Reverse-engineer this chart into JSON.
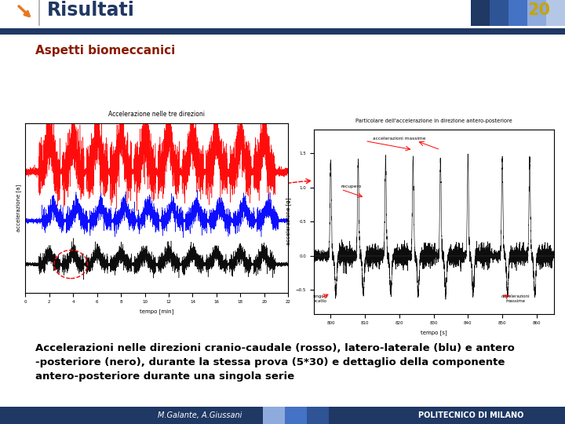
{
  "title": "Risultati",
  "slide_number": "20",
  "subtitle": "Aspetti biomeccanici",
  "body_text": "Accelerazioni nelle direzioni cranio-caudale (rosso), latero-laterale (blu) e antero\n-posteriore (nero), durante la stessa prova (5*30) e dettaglio della componente\nantero-posteriore durante una singola serie",
  "footer_left": "M.Galante, A.Giussani",
  "footer_right": "POLITECNICO DI MILANO",
  "bg_color": "#ffffff",
  "header_title_color": "#1f3864",
  "header_number_color": "#c8a400",
  "arrow_color": "#e87722",
  "subtitle_color": "#8b1a00",
  "body_text_color": "#000000",
  "top_bar_color": "#1f3864",
  "footer_bg_color": "#1f3864",
  "colors_top": [
    "#1f3864",
    "#2e5496",
    "#4472c4",
    "#8faadc",
    "#b4c7e7"
  ],
  "block_colors": [
    "#8faadc",
    "#4472c4",
    "#2e5496",
    "#1f3864"
  ]
}
